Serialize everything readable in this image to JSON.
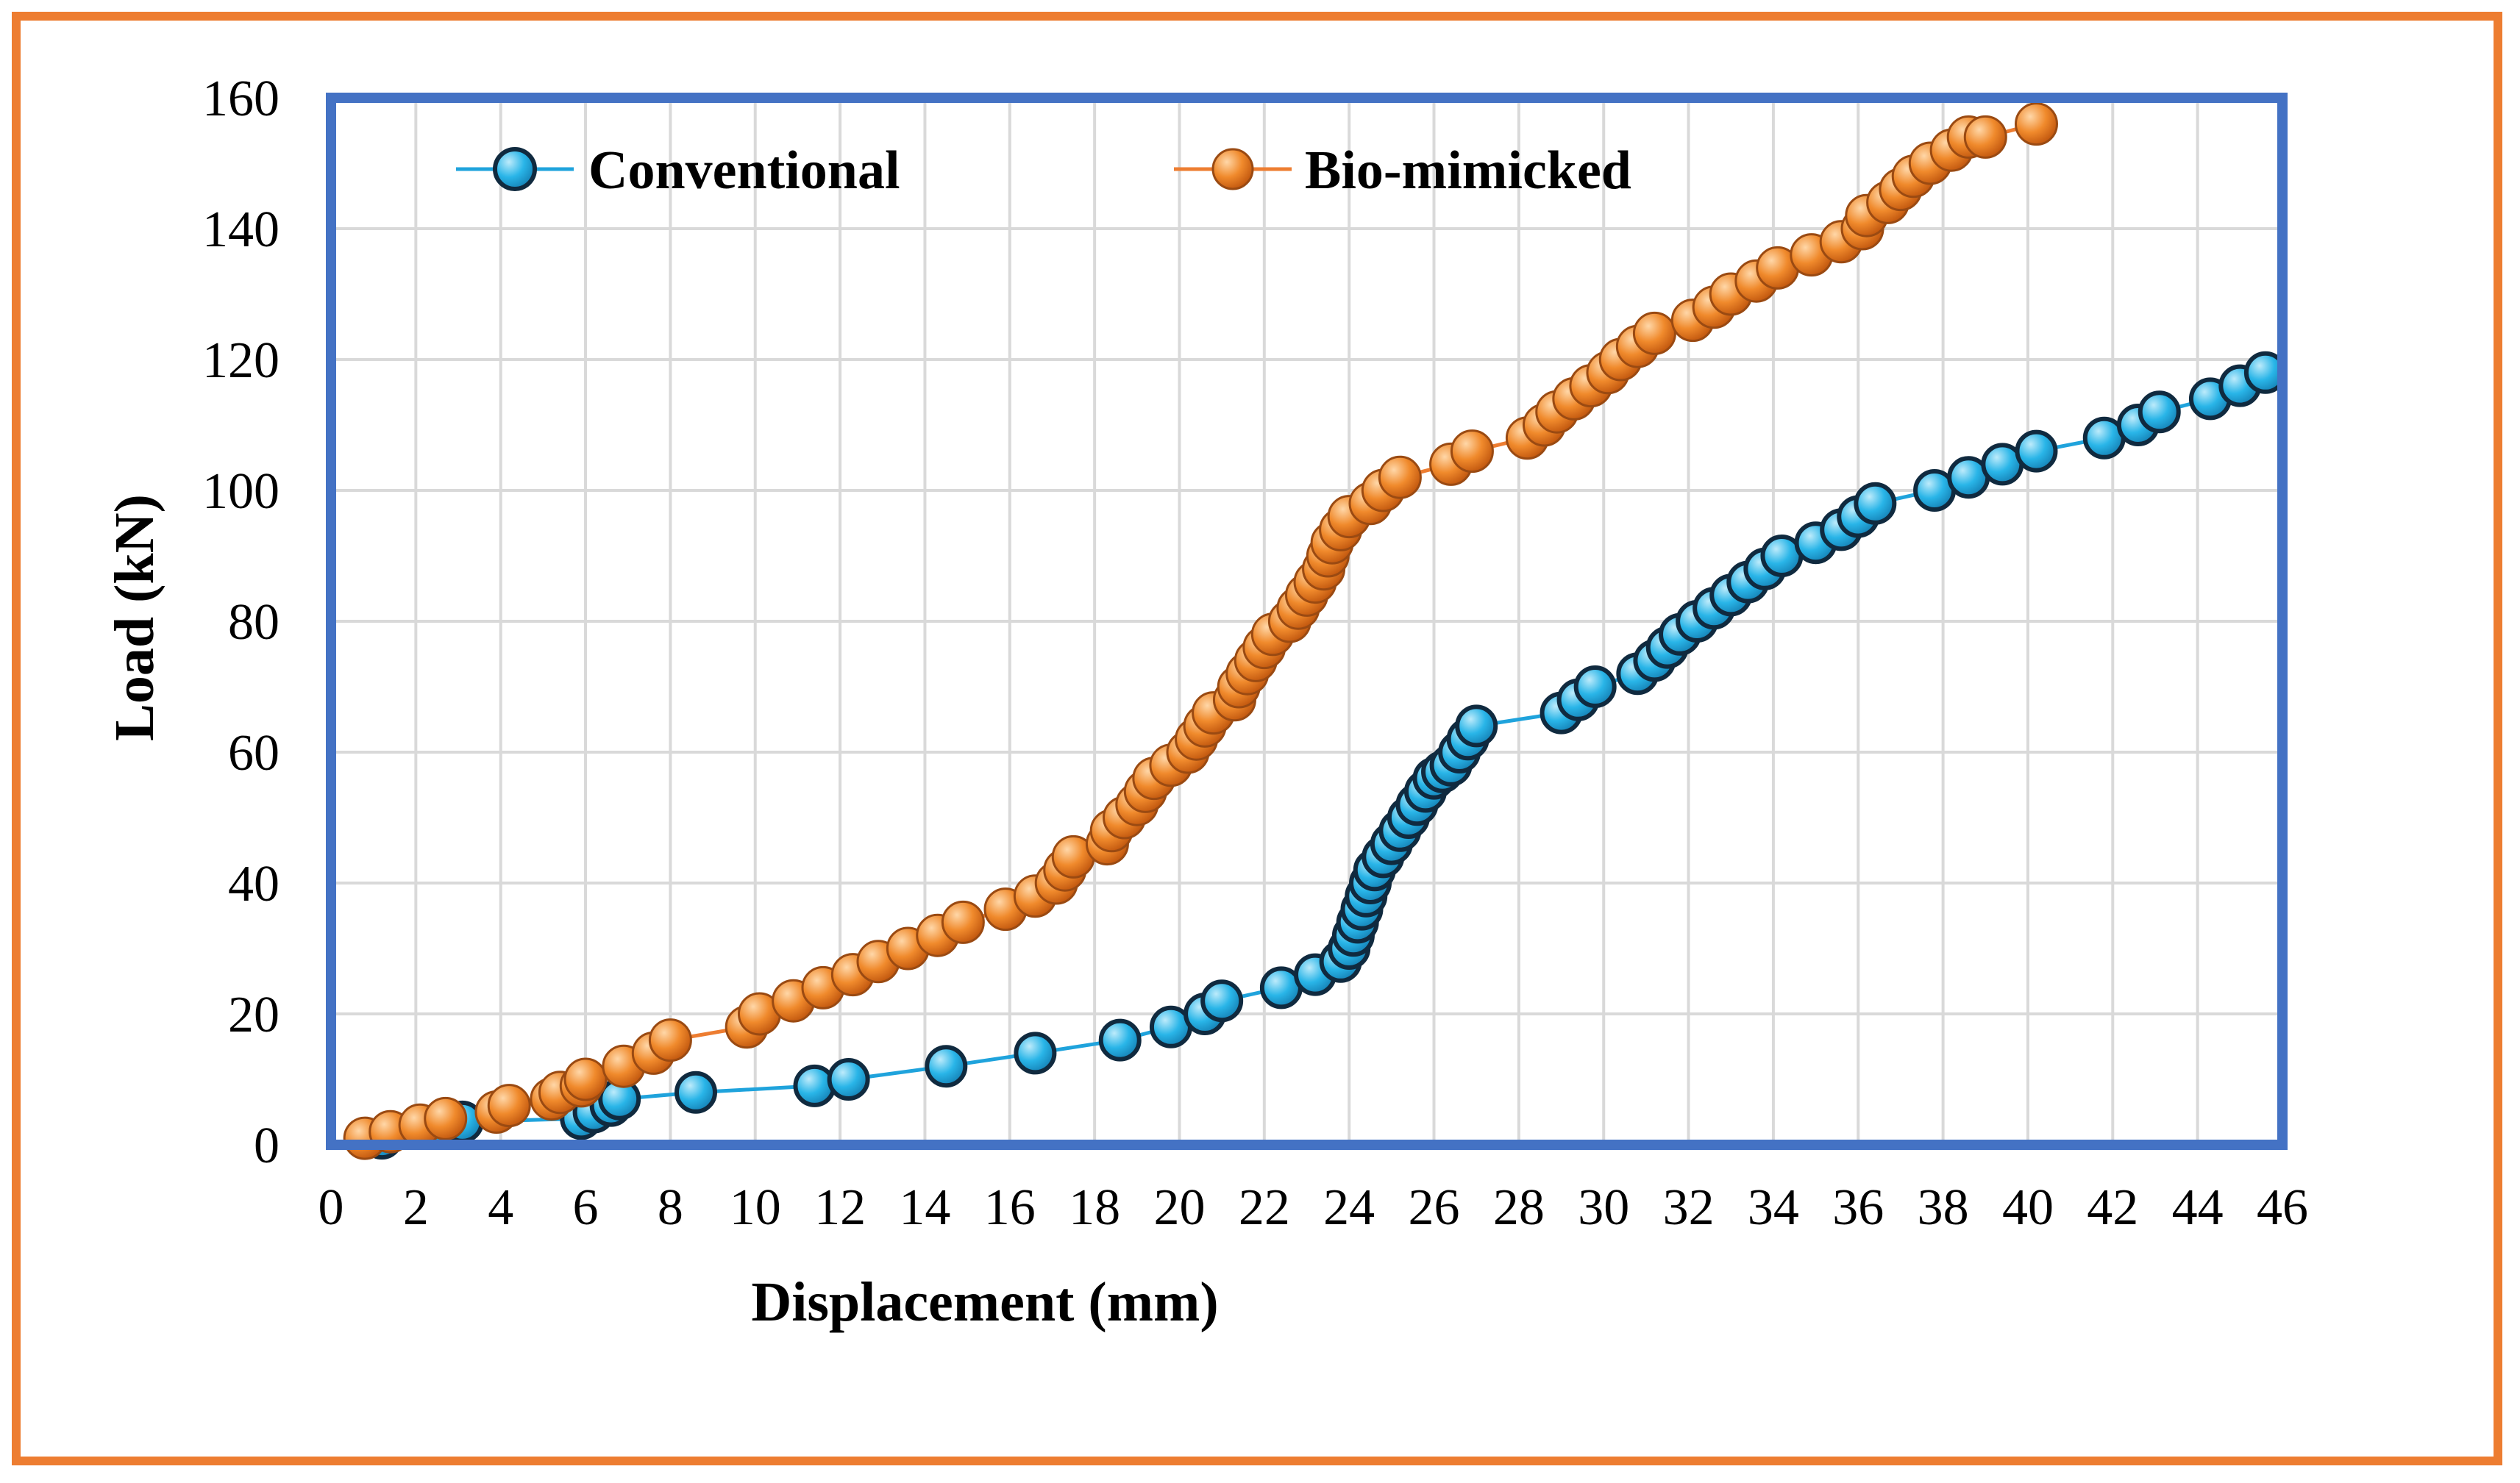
{
  "frame_color": "#ED7D31",
  "plot_border_color": "#4472C4",
  "chart_data": {
    "type": "scatter",
    "title": "",
    "xlabel": "Displacement (mm)",
    "ylabel": "Load (kN)",
    "xlim": [
      0,
      46
    ],
    "ylim": [
      0,
      160
    ],
    "x_ticks": [
      0,
      2,
      4,
      6,
      8,
      10,
      12,
      14,
      16,
      18,
      20,
      22,
      24,
      26,
      28,
      30,
      32,
      34,
      36,
      38,
      40,
      42,
      44,
      46
    ],
    "y_ticks": [
      0,
      20,
      40,
      60,
      80,
      100,
      120,
      140,
      160
    ],
    "grid": true,
    "legend_position": "top",
    "series": [
      {
        "name": "Conventional",
        "color": "#1FA3DC",
        "marker_color": "#29B5E8",
        "line": true,
        "points": [
          [
            1.2,
            1
          ],
          [
            2.4,
            2.5
          ],
          [
            3.1,
            3.5
          ],
          [
            5.9,
            4
          ],
          [
            6.2,
            5
          ],
          [
            6.6,
            6
          ],
          [
            6.8,
            7
          ],
          [
            8.6,
            8
          ],
          [
            11.4,
            9
          ],
          [
            12.2,
            10
          ],
          [
            14.5,
            12
          ],
          [
            16.6,
            14
          ],
          [
            18.6,
            16
          ],
          [
            19.8,
            18
          ],
          [
            20.6,
            20
          ],
          [
            21.0,
            22
          ],
          [
            22.4,
            24
          ],
          [
            23.2,
            26
          ],
          [
            23.8,
            28
          ],
          [
            24.0,
            30
          ],
          [
            24.1,
            32
          ],
          [
            24.2,
            34
          ],
          [
            24.3,
            36
          ],
          [
            24.4,
            38
          ],
          [
            24.5,
            40
          ],
          [
            24.6,
            42
          ],
          [
            24.8,
            44
          ],
          [
            25.0,
            46
          ],
          [
            25.2,
            48
          ],
          [
            25.4,
            50
          ],
          [
            25.6,
            52
          ],
          [
            25.8,
            54
          ],
          [
            26.0,
            56
          ],
          [
            26.2,
            57
          ],
          [
            26.4,
            58
          ],
          [
            26.6,
            60
          ],
          [
            26.8,
            62
          ],
          [
            27.0,
            64
          ],
          [
            29.0,
            66
          ],
          [
            29.4,
            68
          ],
          [
            29.8,
            70
          ],
          [
            30.8,
            72
          ],
          [
            31.2,
            74
          ],
          [
            31.5,
            76
          ],
          [
            31.8,
            78
          ],
          [
            32.2,
            80
          ],
          [
            32.6,
            82
          ],
          [
            33.0,
            84
          ],
          [
            33.4,
            86
          ],
          [
            33.8,
            88
          ],
          [
            34.2,
            90
          ],
          [
            35.0,
            92
          ],
          [
            35.6,
            94
          ],
          [
            36.0,
            96
          ],
          [
            36.4,
            98
          ],
          [
            37.8,
            100
          ],
          [
            38.6,
            102
          ],
          [
            39.4,
            104
          ],
          [
            40.2,
            106
          ],
          [
            41.8,
            108
          ],
          [
            42.6,
            110
          ],
          [
            43.1,
            112
          ],
          [
            44.3,
            114
          ],
          [
            45.0,
            116
          ],
          [
            45.6,
            118
          ]
        ]
      },
      {
        "name": "Bio-mimicked",
        "color": "#ED7D31",
        "marker_color": "#F08A2C",
        "line": true,
        "points": [
          [
            0.8,
            1
          ],
          [
            1.4,
            2
          ],
          [
            2.1,
            3
          ],
          [
            2.7,
            4
          ],
          [
            3.9,
            5
          ],
          [
            4.2,
            6
          ],
          [
            5.2,
            7
          ],
          [
            5.4,
            8
          ],
          [
            5.9,
            9
          ],
          [
            6.0,
            10
          ],
          [
            6.9,
            12
          ],
          [
            7.6,
            14
          ],
          [
            8.0,
            16
          ],
          [
            9.8,
            18
          ],
          [
            10.1,
            20
          ],
          [
            10.9,
            22
          ],
          [
            11.6,
            24
          ],
          [
            12.3,
            26
          ],
          [
            12.9,
            28
          ],
          [
            13.6,
            30
          ],
          [
            14.3,
            32
          ],
          [
            14.9,
            34
          ],
          [
            15.9,
            36
          ],
          [
            16.6,
            38
          ],
          [
            17.1,
            40
          ],
          [
            17.3,
            42
          ],
          [
            17.5,
            44
          ],
          [
            18.3,
            46
          ],
          [
            18.4,
            48
          ],
          [
            18.7,
            50
          ],
          [
            19.0,
            52
          ],
          [
            19.2,
            54
          ],
          [
            19.4,
            56
          ],
          [
            19.8,
            58
          ],
          [
            20.2,
            60
          ],
          [
            20.4,
            62
          ],
          [
            20.6,
            64
          ],
          [
            20.8,
            66
          ],
          [
            21.3,
            68
          ],
          [
            21.4,
            70
          ],
          [
            21.6,
            72
          ],
          [
            21.8,
            74
          ],
          [
            22.0,
            76
          ],
          [
            22.2,
            78
          ],
          [
            22.6,
            80
          ],
          [
            22.8,
            82
          ],
          [
            23.0,
            84
          ],
          [
            23.2,
            86
          ],
          [
            23.4,
            88
          ],
          [
            23.5,
            90
          ],
          [
            23.6,
            92
          ],
          [
            23.8,
            94
          ],
          [
            24.0,
            96
          ],
          [
            24.5,
            98
          ],
          [
            24.8,
            100
          ],
          [
            25.2,
            102
          ],
          [
            26.4,
            104
          ],
          [
            26.9,
            106
          ],
          [
            28.2,
            108
          ],
          [
            28.6,
            110
          ],
          [
            28.9,
            112
          ],
          [
            29.3,
            114
          ],
          [
            29.7,
            116
          ],
          [
            30.1,
            118
          ],
          [
            30.4,
            120
          ],
          [
            30.8,
            122
          ],
          [
            31.2,
            124
          ],
          [
            32.1,
            126
          ],
          [
            32.6,
            128
          ],
          [
            33.0,
            130
          ],
          [
            33.6,
            132
          ],
          [
            34.1,
            134
          ],
          [
            34.9,
            136
          ],
          [
            35.6,
            138
          ],
          [
            36.1,
            140
          ],
          [
            36.2,
            142
          ],
          [
            36.7,
            144
          ],
          [
            37.0,
            146
          ],
          [
            37.3,
            148
          ],
          [
            37.7,
            150
          ],
          [
            38.2,
            152
          ],
          [
            38.6,
            154
          ],
          [
            39.0,
            154
          ],
          [
            40.2,
            156
          ]
        ]
      }
    ]
  }
}
